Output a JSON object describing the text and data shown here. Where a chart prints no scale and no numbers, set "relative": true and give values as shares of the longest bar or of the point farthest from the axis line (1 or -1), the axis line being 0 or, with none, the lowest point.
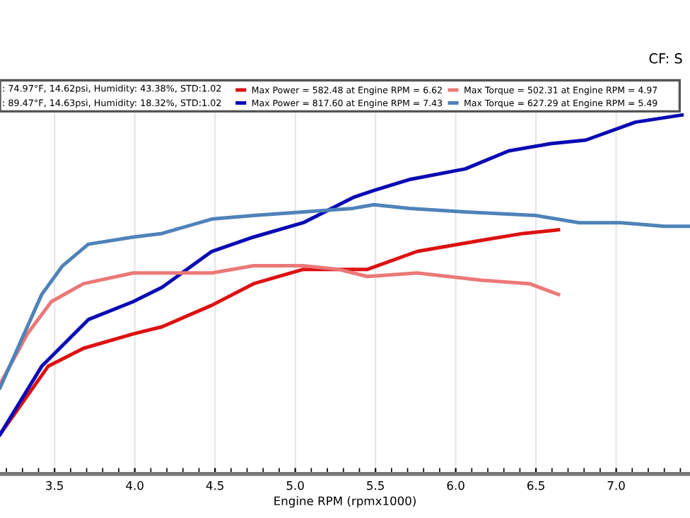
{
  "chart_data": {
    "type": "line",
    "relative": true,
    "xlabel": "Engine RPM (rpmx1000)",
    "xlim": [
      3.16,
      7.46
    ],
    "xticks": [
      3.5,
      {
        "value": 4,
        "label": "4.0"
      },
      4.5,
      {
        "value": 5,
        "label": "5.0"
      },
      5.5,
      {
        "value": 6,
        "label": "6.0"
      },
      6.5,
      {
        "value": 7,
        "label": "7.0"
      }
    ],
    "grid": "x",
    "legend": "top",
    "marker": "none",
    "line_style": "solid",
    "annotations": [
      ": 74.97°F, 14.62psi, Humidity: 43.38%, STD:1.02",
      ": 89.47°F, 14.63psi, Humidity: 18.32%, STD:1.02",
      "CF: S"
    ],
    "series": [
      {
        "name": "Max Power = 582.48 at Engine RPM = 6.62",
        "color": "#dd1111",
        "x": [
          3.16,
          3.46,
          3.68,
          3.99,
          4.17,
          4.48,
          4.74,
          5.05,
          5.31,
          5.45,
          5.76,
          6.15,
          6.42,
          6.64
        ],
        "values": [
          0.11,
          0.3,
          0.35,
          0.39,
          0.41,
          0.47,
          0.53,
          0.57,
          0.57,
          0.57,
          0.62,
          0.65,
          0.67,
          0.68
        ]
      },
      {
        "name": "Max Power = 817.60 at Engine RPM = 7.43",
        "color": "#0a0ab4",
        "x": [
          3.16,
          3.42,
          3.71,
          3.99,
          4.17,
          4.48,
          4.74,
          5.05,
          5.36,
          5.49,
          5.71,
          6.06,
          6.33,
          6.59,
          6.81,
          7.12,
          7.41
        ],
        "values": [
          0.11,
          0.3,
          0.43,
          0.48,
          0.52,
          0.62,
          0.66,
          0.7,
          0.77,
          0.79,
          0.82,
          0.85,
          0.9,
          0.92,
          0.93,
          0.98,
          1.0
        ]
      },
      {
        "name": "Max Torque = 502.31 at Engine RPM = 4.97",
        "color": "#ec7878",
        "x": [
          3.16,
          3.33,
          3.48,
          3.68,
          3.99,
          4.48,
          4.74,
          5.05,
          5.27,
          5.45,
          5.76,
          6.15,
          6.46,
          6.64
        ],
        "values": [
          0.25,
          0.39,
          0.48,
          0.53,
          0.56,
          0.56,
          0.58,
          0.58,
          0.57,
          0.55,
          0.56,
          0.54,
          0.53,
          0.5
        ]
      },
      {
        "name": "Max Torque = 627.29 at Engine RPM = 5.49",
        "color": "#4f82b8",
        "x": [
          3.16,
          3.42,
          3.55,
          3.71,
          3.99,
          4.17,
          4.48,
          4.74,
          5.05,
          5.36,
          5.49,
          5.71,
          6.06,
          6.5,
          6.77,
          7.03,
          7.3,
          7.46
        ],
        "values": [
          0.24,
          0.5,
          0.58,
          0.64,
          0.66,
          0.67,
          0.71,
          0.72,
          0.73,
          0.74,
          0.75,
          0.74,
          0.73,
          0.72,
          0.7,
          0.7,
          0.69,
          0.69
        ]
      }
    ]
  }
}
